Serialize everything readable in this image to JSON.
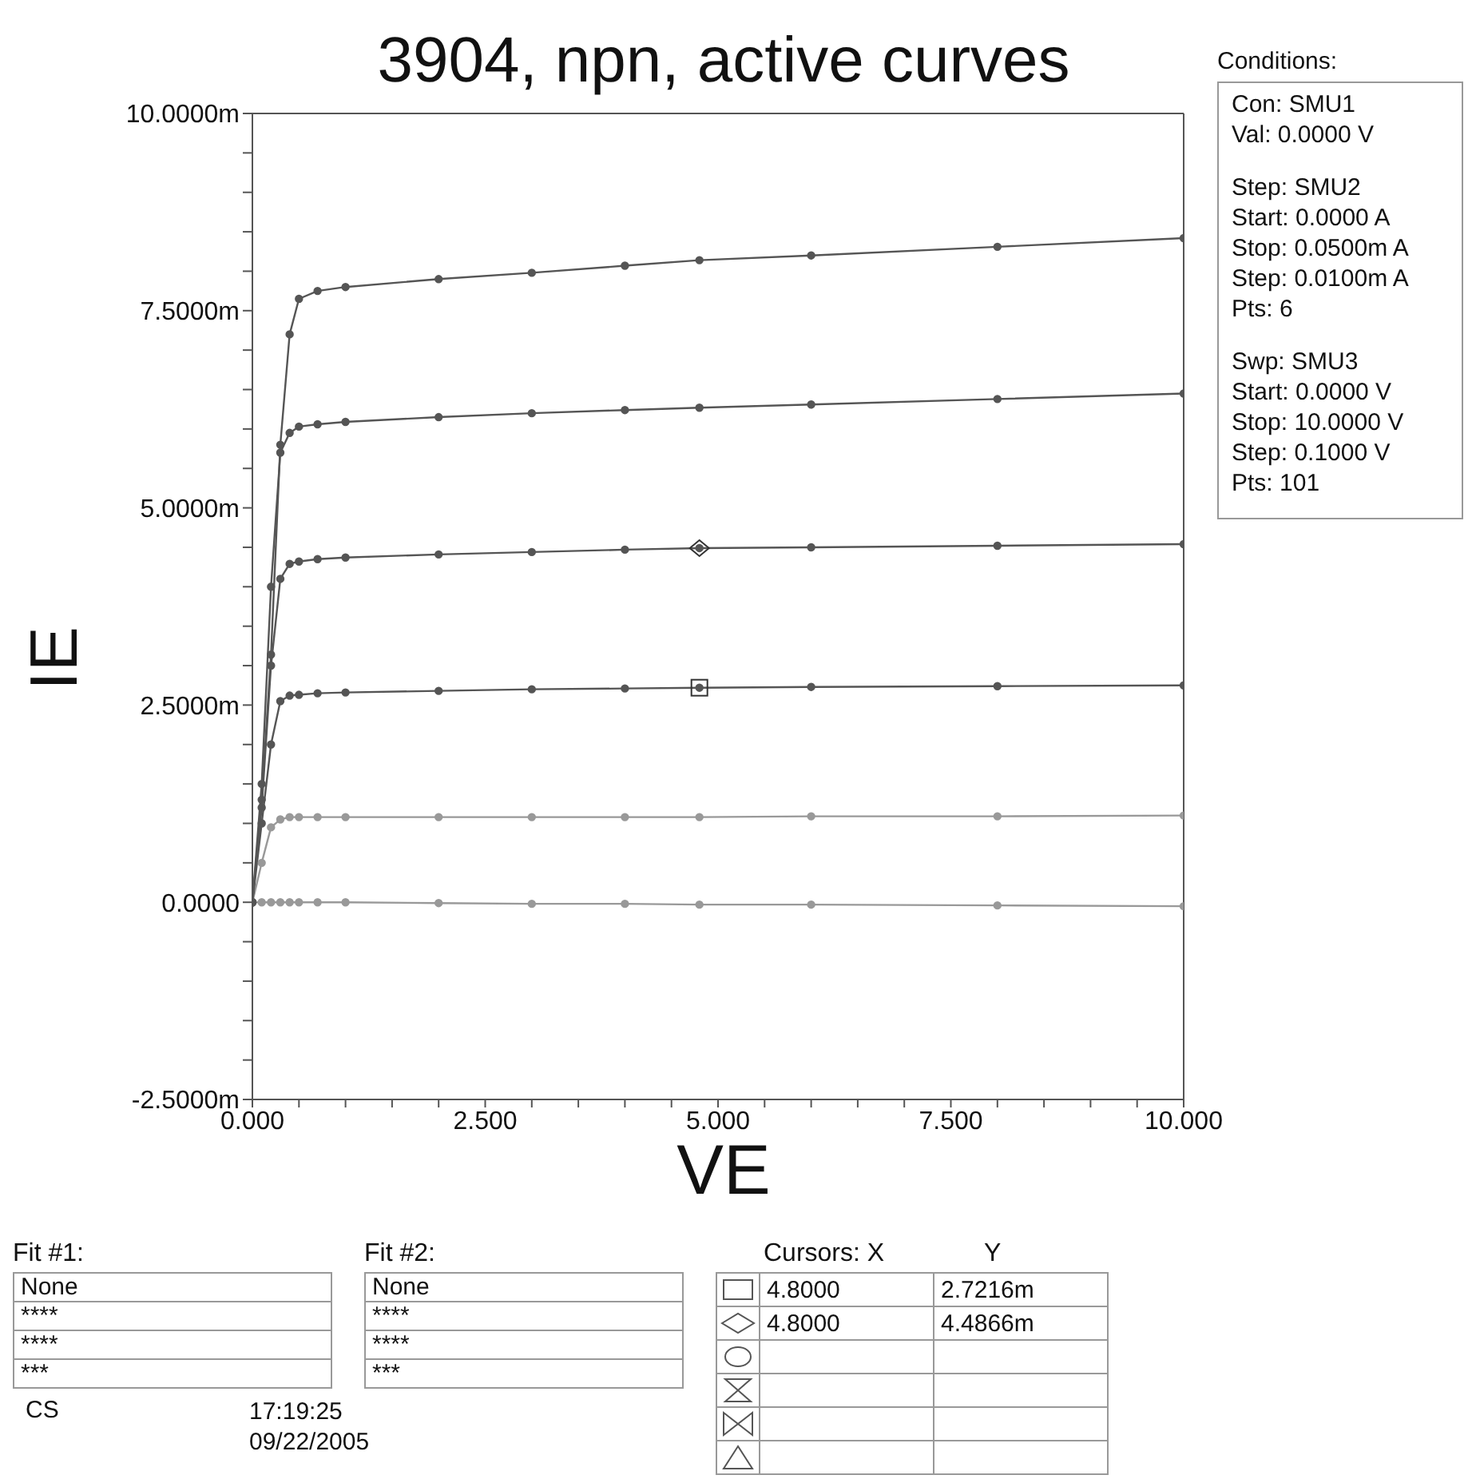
{
  "chart_data": {
    "type": "line",
    "title": "3904, npn, active curves",
    "xlabel": "VE",
    "ylabel": "IE",
    "x": [
      0,
      0.1,
      0.2,
      0.3,
      0.4,
      0.5,
      0.7,
      1,
      2,
      3,
      4,
      4.8,
      6,
      8,
      10
    ],
    "series": [
      {
        "color": "#999999",
        "values": [
          0,
          0,
          0,
          0,
          0,
          0,
          0,
          0,
          -0.01,
          -0.02,
          -0.02,
          -0.03,
          -0.03,
          -0.04,
          -0.05
        ]
      },
      {
        "color": "#999999",
        "values": [
          0,
          0.5,
          0.95,
          1.05,
          1.08,
          1.08,
          1.08,
          1.08,
          1.08,
          1.08,
          1.08,
          1.08,
          1.09,
          1.09,
          1.1
        ]
      },
      {
        "color": "#555555",
        "values": [
          0,
          1.0,
          2.0,
          2.55,
          2.62,
          2.63,
          2.65,
          2.66,
          2.68,
          2.7,
          2.71,
          2.72,
          2.73,
          2.74,
          2.75
        ]
      },
      {
        "color": "#555555",
        "values": [
          0,
          1.2,
          3.0,
          4.1,
          4.29,
          4.32,
          4.35,
          4.37,
          4.41,
          4.44,
          4.47,
          4.49,
          4.5,
          4.52,
          4.54
        ]
      },
      {
        "color": "#555555",
        "values": [
          0,
          1.5,
          4.0,
          5.7,
          5.95,
          6.03,
          6.06,
          6.09,
          6.15,
          6.2,
          6.24,
          6.27,
          6.31,
          6.38,
          6.45
        ]
      },
      {
        "color": "#555555",
        "values": [
          0,
          1.3,
          3.14,
          5.8,
          7.2,
          7.65,
          7.75,
          7.8,
          7.9,
          7.98,
          8.07,
          8.14,
          8.2,
          8.31,
          8.42
        ]
      }
    ],
    "xlim": [
      0,
      10
    ],
    "xticks": [
      {
        "value": 0,
        "label": "0.000"
      },
      {
        "value": 0.5,
        "label": null
      },
      {
        "value": 1,
        "label": null
      },
      {
        "value": 1.5,
        "label": null
      },
      {
        "value": 2,
        "label": null
      },
      {
        "value": 2.5,
        "label": "2.500"
      },
      {
        "value": 3,
        "label": null
      },
      {
        "value": 3.5,
        "label": null
      },
      {
        "value": 4,
        "label": null
      },
      {
        "value": 4.5,
        "label": null
      },
      {
        "value": 5,
        "label": "5.000"
      },
      {
        "value": 5.5,
        "label": null
      },
      {
        "value": 6,
        "label": null
      },
      {
        "value": 6.5,
        "label": null
      },
      {
        "value": 7,
        "label": null
      },
      {
        "value": 7.5,
        "label": "7.500"
      },
      {
        "value": 8,
        "label": null
      },
      {
        "value": 8.5,
        "label": null
      },
      {
        "value": 9,
        "label": null
      },
      {
        "value": 9.5,
        "label": null
      },
      {
        "value": 10,
        "label": "10.000"
      }
    ],
    "ylim": [
      -2.5,
      10
    ],
    "yticks": [
      {
        "value": -2.5,
        "label": "-2.5000m"
      },
      {
        "value": -2,
        "label": null
      },
      {
        "value": -1.5,
        "label": null
      },
      {
        "value": -1,
        "label": null
      },
      {
        "value": -0.5,
        "label": null
      },
      {
        "value": 0,
        "label": "0.0000"
      },
      {
        "value": 0.5,
        "label": null
      },
      {
        "value": 1,
        "label": null
      },
      {
        "value": 1.5,
        "label": null
      },
      {
        "value": 2,
        "label": null
      },
      {
        "value": 2.5,
        "label": "2.5000m"
      },
      {
        "value": 3,
        "label": null
      },
      {
        "value": 3.5,
        "label": null
      },
      {
        "value": 4,
        "label": null
      },
      {
        "value": 4.5,
        "label": null
      },
      {
        "value": 5,
        "label": "5.0000m"
      },
      {
        "value": 5.5,
        "label": null
      },
      {
        "value": 6,
        "label": null
      },
      {
        "value": 6.5,
        "label": null
      },
      {
        "value": 7,
        "label": null
      },
      {
        "value": 7.5,
        "label": "7.5000m"
      },
      {
        "value": 8,
        "label": null
      },
      {
        "value": 8.5,
        "label": null
      },
      {
        "value": 9,
        "label": null
      },
      {
        "value": 9.5,
        "label": null
      },
      {
        "value": 10,
        "label": "10.0000m"
      }
    ],
    "grid": false,
    "legend": false,
    "marker": "circle",
    "line_style": "solid",
    "annotations": [
      "Conditions:",
      "Con: SMU1",
      "Val: 0.0000 V",
      "Step: SMU2",
      "Start: 0.0000 A",
      "Stop: 0.0500m A",
      "Step: 0.0100m A",
      "Pts: 6",
      "Swp: SMU3",
      "Start: 0.0000 V",
      "Stop: 10.0000 V",
      "Step: 0.1000 V",
      "Pts: 101",
      "Fit #1:",
      "None",
      "****",
      "****",
      "***",
      "Fit #2:",
      "None",
      "****",
      "****",
      "***",
      "Cursors: X",
      "Y",
      "4.8000",
      "2.7216m",
      "4.8000",
      "4.4866m",
      "CS",
      "17:19:25",
      "09/22/2005"
    ]
  }
}
